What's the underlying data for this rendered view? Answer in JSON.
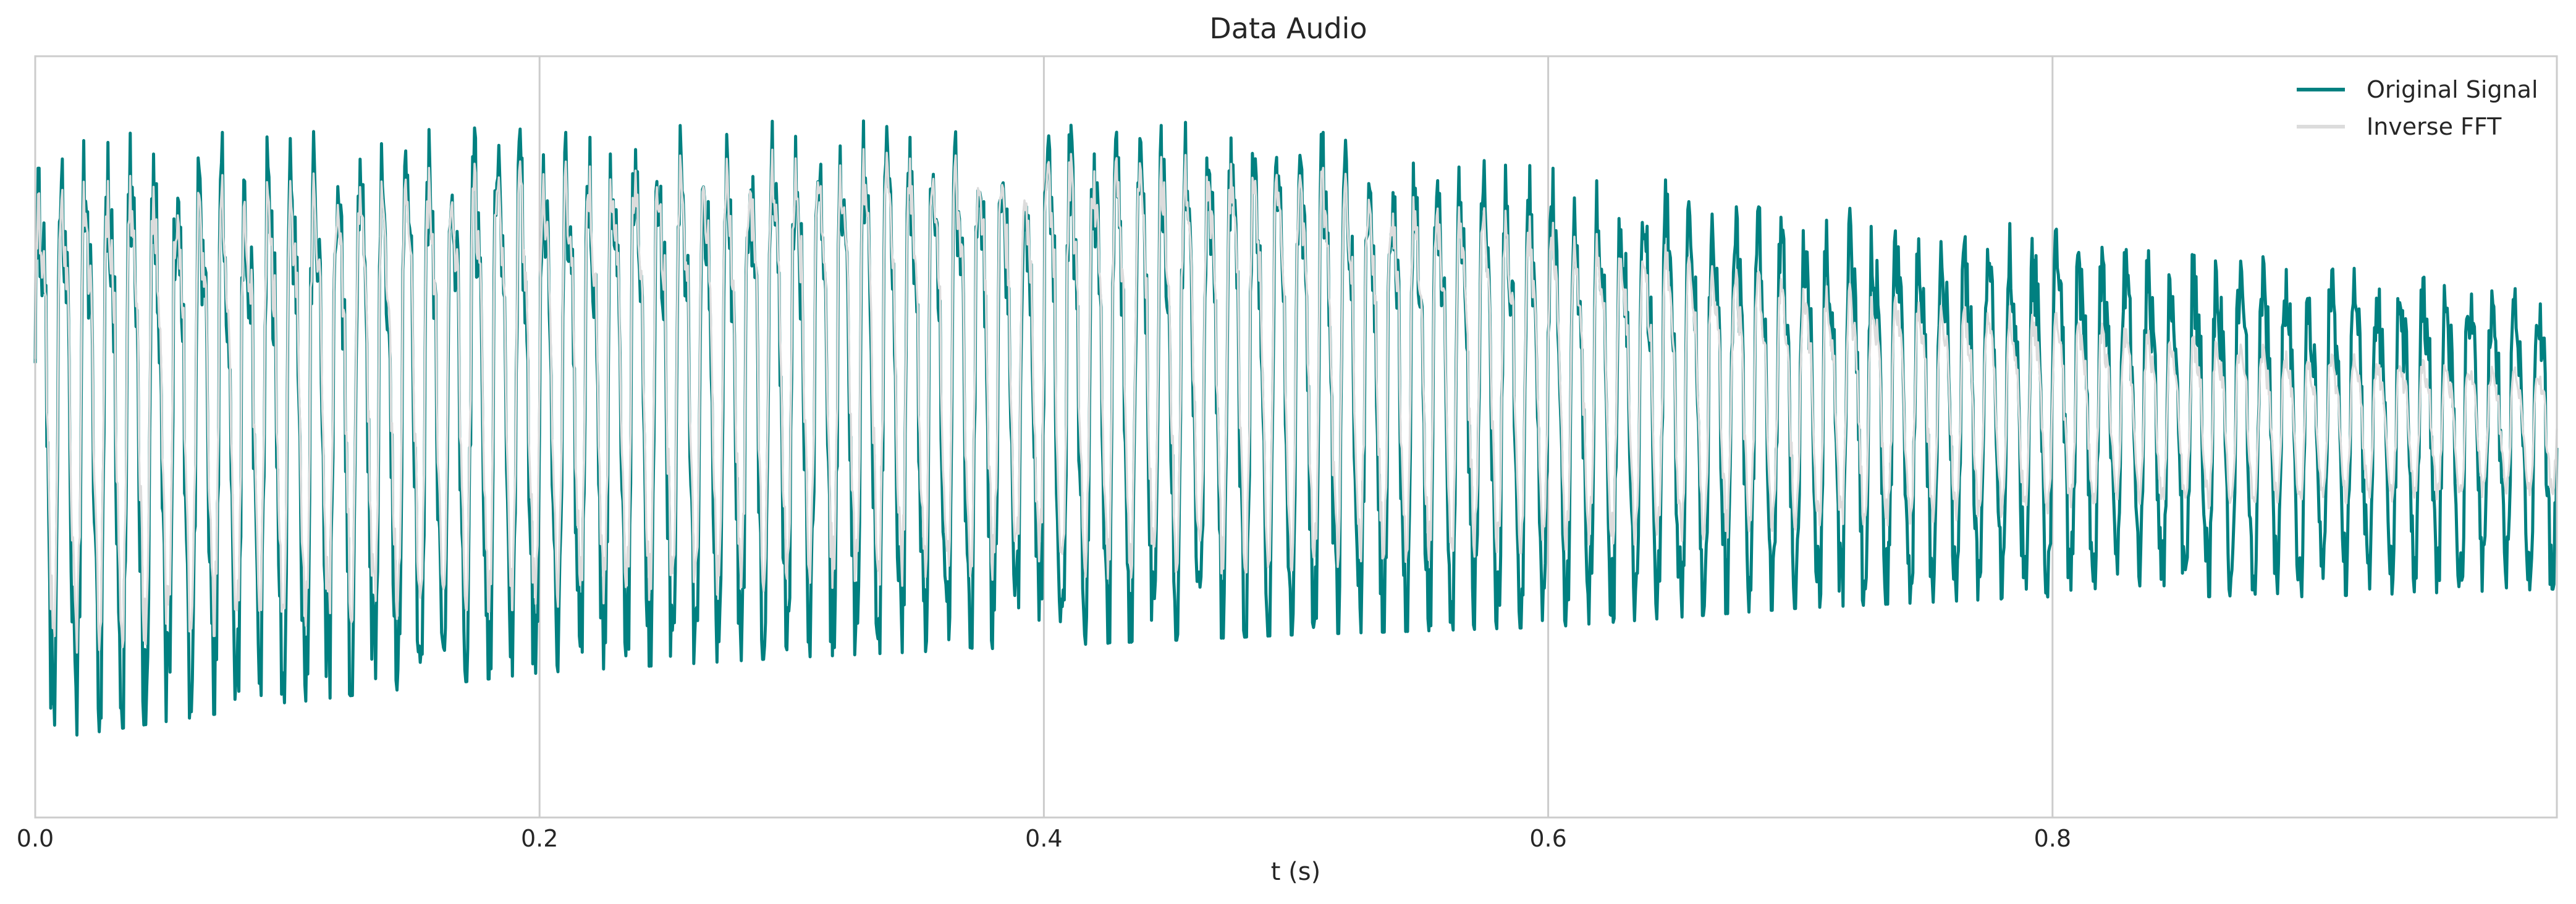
{
  "chart_data": {
    "type": "line",
    "title": "Data Audio",
    "xlabel": "t (s)",
    "ylabel": "",
    "xlim": [
      0,
      1.0
    ],
    "ylim": [
      -1.0,
      1.0
    ],
    "x_ticks": [
      0.0,
      0.2,
      0.4,
      0.6,
      0.8
    ],
    "x_tick_labels": [
      "0.0",
      "0.2",
      "0.4",
      "0.6",
      "0.8"
    ],
    "y_ticks_visible": false,
    "grid": "vertical",
    "legend": "top-right",
    "series": [
      {
        "name": "Original Signal",
        "color": "#008080",
        "envelope": [
          {
            "t": 0.0,
            "max": 0.8,
            "min": -0.8
          },
          {
            "t": 0.1,
            "max": 0.8,
            "min": -0.7
          },
          {
            "t": 0.2,
            "max": 0.82,
            "min": -0.62
          },
          {
            "t": 0.3,
            "max": 0.83,
            "min": -0.58
          },
          {
            "t": 0.4,
            "max": 0.83,
            "min": -0.55
          },
          {
            "t": 0.5,
            "max": 0.83,
            "min": -0.52
          },
          {
            "t": 0.6,
            "max": 0.73,
            "min": -0.5
          },
          {
            "t": 0.7,
            "max": 0.62,
            "min": -0.45
          },
          {
            "t": 0.8,
            "max": 0.55,
            "min": -0.42
          },
          {
            "t": 0.9,
            "max": 0.48,
            "min": -0.42
          },
          {
            "t": 1.0,
            "max": 0.42,
            "min": -0.4
          }
        ]
      },
      {
        "name": "Inverse FFT",
        "color": "#dcdcdc",
        "envelope": [
          {
            "t": 0.0,
            "max": 0.74,
            "min": -0.58
          },
          {
            "t": 0.1,
            "max": 0.73,
            "min": -0.5
          },
          {
            "t": 0.2,
            "max": 0.78,
            "min": -0.45
          },
          {
            "t": 0.3,
            "max": 0.8,
            "min": -0.4
          },
          {
            "t": 0.4,
            "max": 0.8,
            "min": -0.38
          },
          {
            "t": 0.5,
            "max": 0.78,
            "min": -0.35
          },
          {
            "t": 0.6,
            "max": 0.62,
            "min": -0.3
          },
          {
            "t": 0.7,
            "max": 0.45,
            "min": -0.25
          },
          {
            "t": 0.8,
            "max": 0.35,
            "min": -0.2
          },
          {
            "t": 0.9,
            "max": 0.25,
            "min": -0.18
          },
          {
            "t": 1.0,
            "max": 0.2,
            "min": -0.15
          }
        ]
      }
    ]
  }
}
